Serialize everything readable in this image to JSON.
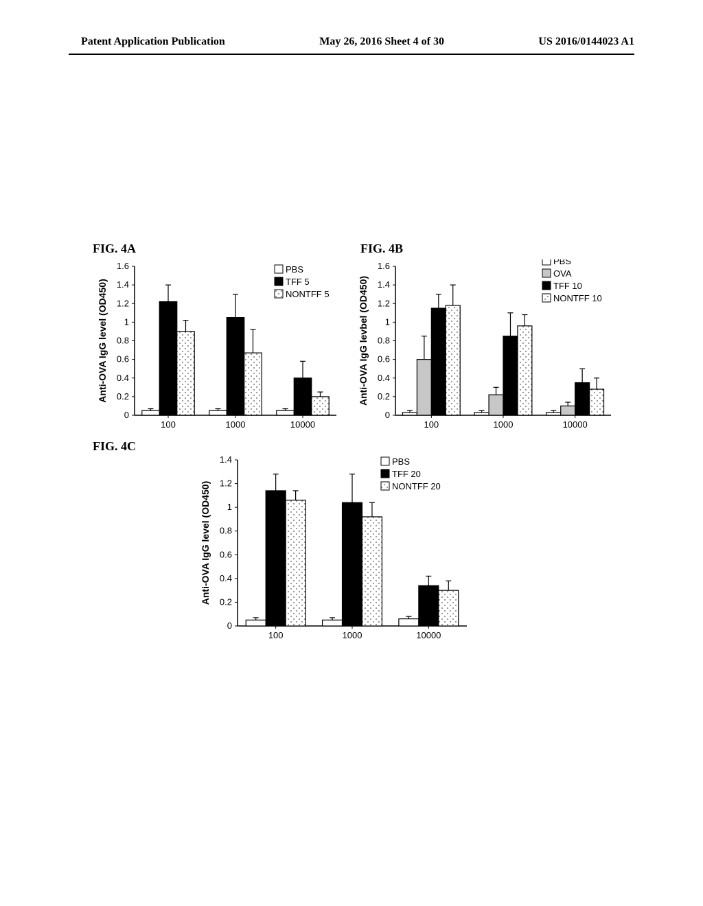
{
  "header": {
    "left": "Patent Application Publication",
    "center": "May 26, 2016  Sheet 4 of 30",
    "right": "US 2016/0144023 A1"
  },
  "figA": {
    "label": "FIG. 4A",
    "type": "bar",
    "ylabel": "Anti-OVA IgG level (OD450)",
    "ylim": [
      0,
      1.6
    ],
    "ytick_step": 0.2,
    "categories": [
      "100",
      "1000",
      "10000"
    ],
    "legend": [
      {
        "label": "PBS",
        "fill": "#ffffff",
        "pattern": "none"
      },
      {
        "label": "TFF 5",
        "fill": "#000000",
        "pattern": "none"
      },
      {
        "label": "NONTFF 5",
        "fill": "#ffffff",
        "pattern": "dots"
      }
    ],
    "series": {
      "PBS": [
        {
          "v": 0.05,
          "e": 0.02
        },
        {
          "v": 0.05,
          "e": 0.02
        },
        {
          "v": 0.05,
          "e": 0.02
        }
      ],
      "TFF": [
        {
          "v": 1.22,
          "e": 0.18
        },
        {
          "v": 1.05,
          "e": 0.25
        },
        {
          "v": 0.4,
          "e": 0.18
        }
      ],
      "NONTFF": [
        {
          "v": 0.9,
          "e": 0.12
        },
        {
          "v": 0.67,
          "e": 0.25
        },
        {
          "v": 0.2,
          "e": 0.05
        }
      ]
    },
    "bar_width": 0.26,
    "colors": {
      "pbs": "#ffffff",
      "tff": "#000000",
      "nontff_dot": "#555555",
      "border": "#000000",
      "error": "#000000"
    },
    "label_fontsize": 14
  },
  "figB": {
    "label": "FIG. 4B",
    "type": "bar",
    "ylabel": "Anti-OVA IgG levbel (OD450)",
    "ylim": [
      0,
      1.6
    ],
    "ytick_step": 0.2,
    "categories": [
      "100",
      "1000",
      "10000"
    ],
    "legend": [
      {
        "label": "PBS",
        "fill": "#ffffff",
        "pattern": "none"
      },
      {
        "label": "OVA",
        "fill": "#c7c7c7",
        "pattern": "none"
      },
      {
        "label": "TFF 10",
        "fill": "#000000",
        "pattern": "none"
      },
      {
        "label": "NONTFF 10",
        "fill": "#ffffff",
        "pattern": "dots"
      }
    ],
    "series": {
      "PBS": [
        {
          "v": 0.03,
          "e": 0.02
        },
        {
          "v": 0.03,
          "e": 0.02
        },
        {
          "v": 0.03,
          "e": 0.02
        }
      ],
      "OVA": [
        {
          "v": 0.6,
          "e": 0.25
        },
        {
          "v": 0.22,
          "e": 0.08
        },
        {
          "v": 0.1,
          "e": 0.04
        }
      ],
      "TFF": [
        {
          "v": 1.15,
          "e": 0.15
        },
        {
          "v": 0.85,
          "e": 0.25
        },
        {
          "v": 0.35,
          "e": 0.15
        }
      ],
      "NONTFF": [
        {
          "v": 1.18,
          "e": 0.22
        },
        {
          "v": 0.96,
          "e": 0.12
        },
        {
          "v": 0.28,
          "e": 0.12
        }
      ]
    },
    "bar_width": 0.2,
    "colors": {
      "pbs": "#ffffff",
      "ova": "#c7c7c7",
      "tff": "#000000",
      "nontff_dot": "#555555",
      "border": "#000000",
      "error": "#000000"
    },
    "label_fontsize": 14
  },
  "figC": {
    "label": "FIG. 4C",
    "type": "bar",
    "ylabel": "Anti-OVA IgG level (OD450)",
    "ylim": [
      0,
      1.4
    ],
    "ytick_step": 0.2,
    "categories": [
      "100",
      "1000",
      "10000"
    ],
    "legend": [
      {
        "label": "PBS",
        "fill": "#ffffff",
        "pattern": "none"
      },
      {
        "label": "TFF 20",
        "fill": "#000000",
        "pattern": "none"
      },
      {
        "label": "NONTFF 20",
        "fill": "#ffffff",
        "pattern": "dots"
      }
    ],
    "series": {
      "PBS": [
        {
          "v": 0.05,
          "e": 0.02
        },
        {
          "v": 0.05,
          "e": 0.02
        },
        {
          "v": 0.06,
          "e": 0.02
        }
      ],
      "TFF": [
        {
          "v": 1.14,
          "e": 0.14
        },
        {
          "v": 1.04,
          "e": 0.24
        },
        {
          "v": 0.34,
          "e": 0.08
        }
      ],
      "NONTFF": [
        {
          "v": 1.06,
          "e": 0.08
        },
        {
          "v": 0.92,
          "e": 0.12
        },
        {
          "v": 0.3,
          "e": 0.08
        }
      ]
    },
    "bar_width": 0.26,
    "colors": {
      "pbs": "#ffffff",
      "tff": "#000000",
      "nontff_dot": "#555555",
      "border": "#000000",
      "error": "#000000"
    },
    "label_fontsize": 14
  }
}
